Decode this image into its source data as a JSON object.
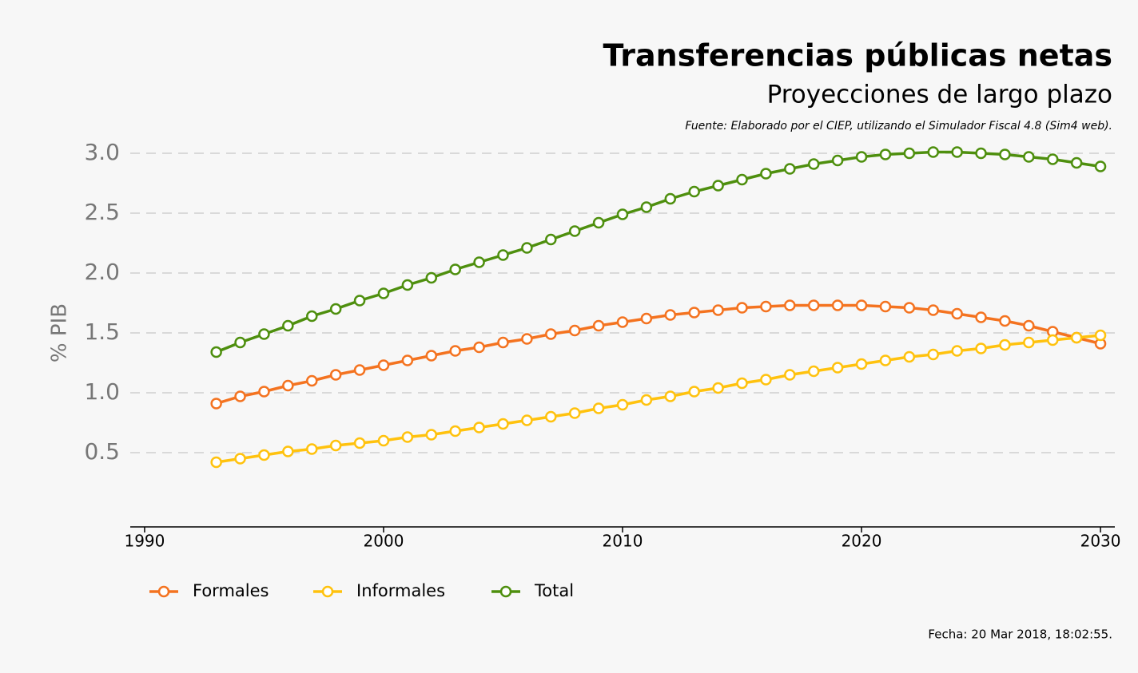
{
  "chart_data": {
    "type": "line",
    "title": "Transferencias públicas netas",
    "subtitle": "Proyecciones de largo plazo",
    "source": "Fuente: Elaborado por el CIEP, utilizando el Simulador Fiscal 4.8 (Sim4 web).",
    "date_note": "Fecha: 20 Mar 2018, 18:02:55.",
    "ylabel": "% PIB",
    "x": [
      1993,
      1994,
      1995,
      1996,
      1997,
      1998,
      1999,
      2000,
      2001,
      2002,
      2003,
      2004,
      2005,
      2006,
      2007,
      2008,
      2009,
      2010,
      2011,
      2012,
      2013,
      2014,
      2015,
      2016,
      2017,
      2018,
      2019,
      2020,
      2021,
      2022,
      2023,
      2024,
      2025,
      2026,
      2027,
      2028,
      2029,
      2030
    ],
    "series": [
      {
        "name": "Formales",
        "color": "#f47320",
        "values": [
          0.91,
          0.97,
          1.01,
          1.06,
          1.1,
          1.15,
          1.19,
          1.23,
          1.27,
          1.31,
          1.35,
          1.38,
          1.42,
          1.45,
          1.49,
          1.52,
          1.56,
          1.59,
          1.62,
          1.65,
          1.67,
          1.69,
          1.71,
          1.72,
          1.73,
          1.73,
          1.73,
          1.73,
          1.72,
          1.71,
          1.69,
          1.66,
          1.63,
          1.6,
          1.56,
          1.51,
          1.46,
          1.41
        ]
      },
      {
        "name": "Informales",
        "color": "#ffc20e",
        "values": [
          0.42,
          0.45,
          0.48,
          0.51,
          0.53,
          0.56,
          0.58,
          0.6,
          0.63,
          0.65,
          0.68,
          0.71,
          0.74,
          0.77,
          0.8,
          0.83,
          0.87,
          0.9,
          0.94,
          0.97,
          1.01,
          1.04,
          1.08,
          1.11,
          1.15,
          1.18,
          1.21,
          1.24,
          1.27,
          1.3,
          1.32,
          1.35,
          1.37,
          1.4,
          1.42,
          1.44,
          1.46,
          1.48
        ]
      },
      {
        "name": "Total",
        "color": "#4e8f0e",
        "values": [
          1.34,
          1.42,
          1.49,
          1.56,
          1.64,
          1.7,
          1.77,
          1.83,
          1.9,
          1.96,
          2.03,
          2.09,
          2.15,
          2.21,
          2.28,
          2.35,
          2.42,
          2.49,
          2.55,
          2.62,
          2.68,
          2.73,
          2.78,
          2.83,
          2.87,
          2.91,
          2.94,
          2.97,
          2.99,
          3.0,
          3.01,
          3.01,
          3.0,
          2.99,
          2.97,
          2.95,
          2.92,
          2.89
        ]
      }
    ],
    "xlim": [
      1989.4,
      2030.6
    ],
    "xticks": [
      1990,
      2000,
      2010,
      2020,
      2030
    ],
    "ylim": [
      -0.12,
      3.1
    ],
    "yticks": [
      {
        "value": 0.5,
        "label": "0.5"
      },
      {
        "value": 1,
        "label": "1.0"
      },
      {
        "value": 1.5,
        "label": "1.5"
      },
      {
        "value": 2,
        "label": "2.0"
      },
      {
        "value": 2.5,
        "label": "2.5"
      },
      {
        "value": 3,
        "label": "3.0"
      }
    ],
    "grid": true,
    "legend": "bottom-left"
  }
}
